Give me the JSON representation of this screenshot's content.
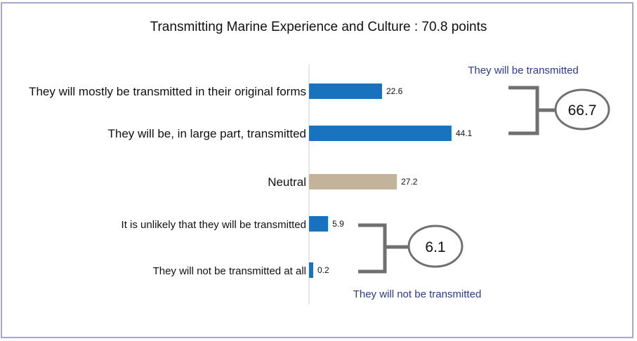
{
  "chart_data": {
    "type": "bar",
    "orientation": "horizontal",
    "title": "Transmitting Marine Experience and Culture : 70.8 points",
    "categories": [
      "They will mostly be transmitted in their original forms",
      "They will be, in large part, transmitted",
      "Neutral",
      "It is unlikely that they will be transmitted",
      "They will not be transmitted at all"
    ],
    "values": [
      22.6,
      44.1,
      27.2,
      5.9,
      0.2
    ],
    "value_labels": [
      "22.6",
      "44.1",
      "27.2",
      "5.9",
      "0.2"
    ],
    "bar_colors": [
      "#1872bd",
      "#1872bd",
      "#c4b39b",
      "#1872bd",
      "#1872bd"
    ],
    "xlim": [
      0,
      50
    ],
    "grid": false,
    "groups": [
      {
        "label": "They will be transmitted",
        "total": "66.7",
        "members": [
          0,
          1
        ]
      },
      {
        "label": "They will not be transmitted",
        "total": "6.1",
        "members": [
          3,
          4
        ]
      }
    ]
  },
  "colors": {
    "positive": "#1872bd",
    "neutral": "#c4b39b",
    "group_label": "#2b3a8c",
    "bracket": "#707070",
    "frame": "#a8a6cc"
  }
}
